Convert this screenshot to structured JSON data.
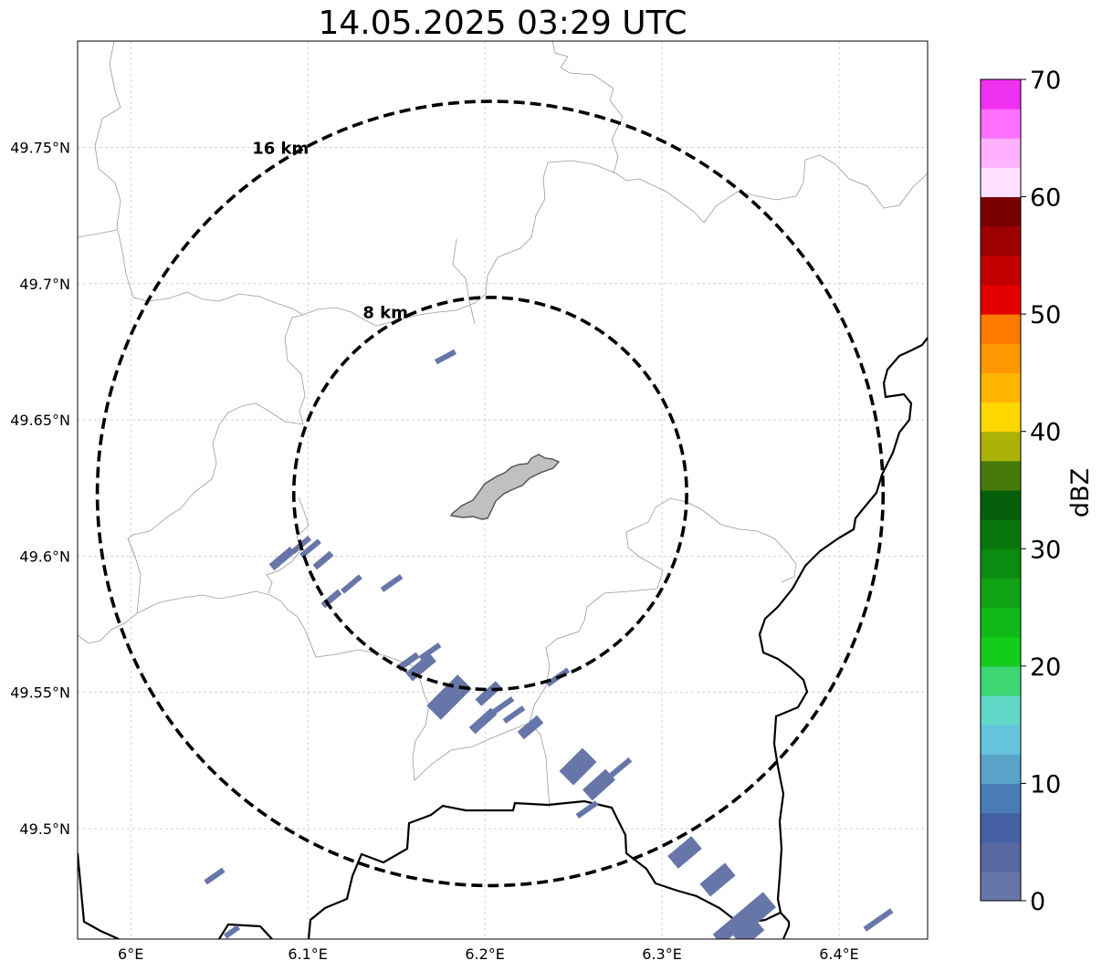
{
  "title": "14.05.2025 03:29 UTC",
  "map": {
    "lon_range": [
      5.97,
      6.45
    ],
    "lat_range": [
      49.4595,
      49.789
    ],
    "x_ticks": [
      {
        "value": 6.0,
        "label": "6°E"
      },
      {
        "value": 6.1,
        "label": "6.1°E"
      },
      {
        "value": 6.2,
        "label": "6.2°E"
      },
      {
        "value": 6.3,
        "label": "6.3°E"
      },
      {
        "value": 6.4,
        "label": "6.4°E"
      }
    ],
    "y_ticks": [
      {
        "value": 49.5,
        "label": "49.5°N"
      },
      {
        "value": 49.55,
        "label": "49.55°N"
      },
      {
        "value": 49.6,
        "label": "49.6°N"
      },
      {
        "value": 49.65,
        "label": "49.65°N"
      },
      {
        "value": 49.7,
        "label": "49.7°N"
      },
      {
        "value": 49.75,
        "label": "49.75°N"
      }
    ],
    "grid": true,
    "rings": [
      {
        "radius_km": 8,
        "label": "8 km"
      },
      {
        "radius_km": 16,
        "label": "16 km"
      }
    ],
    "ring_center": {
      "lon": 6.203,
      "lat": 49.623
    }
  },
  "colorbar": {
    "label": "dBZ",
    "min": 0,
    "max": 70,
    "ticks": [
      0,
      10,
      20,
      30,
      40,
      50,
      60,
      70
    ],
    "colors": [
      "#6776a8",
      "#5767a0",
      "#4560a4",
      "#4b7bb4",
      "#59a3c8",
      "#65c4dc",
      "#60d8c8",
      "#3cd672",
      "#14cc1a",
      "#10b818",
      "#0ea214",
      "#0a8c10",
      "#08760c",
      "#065f0a",
      "#477a0a",
      "#aab208",
      "#ffd800",
      "#ffb400",
      "#ff9800",
      "#ff7800",
      "#e40000",
      "#c20000",
      "#9e0000",
      "#780000",
      "#ffe0ff",
      "#ffb0ff",
      "#ff70ff",
      "#f030f0"
    ]
  }
}
